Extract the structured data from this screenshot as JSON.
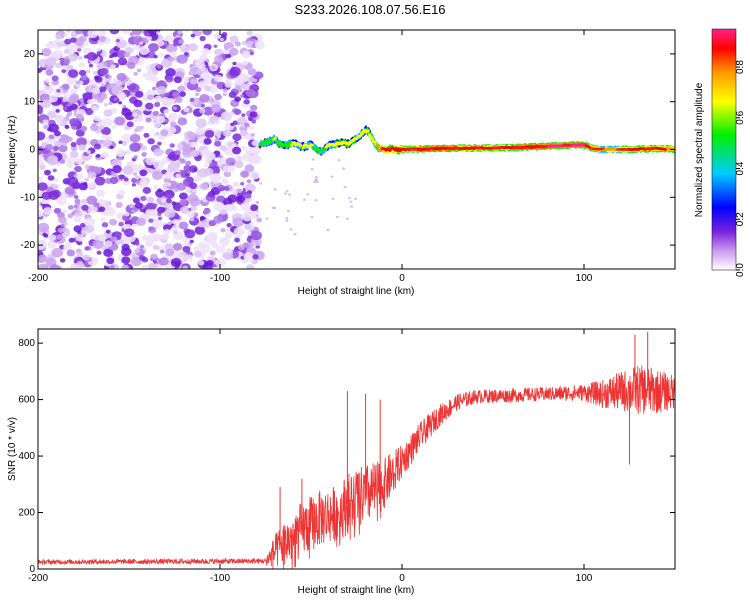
{
  "title": "S233.2026.108.07.56.E16",
  "colors": {
    "snr_line": "#ee3333",
    "noise": "#9966ee"
  },
  "chart_data": [
    {
      "type": "heatmap",
      "xlabel": "Height of straight line (km)",
      "ylabel": "Frequency (Hz)",
      "xlim": [
        -200,
        150
      ],
      "ylim": [
        -25,
        25
      ],
      "x_ticks": [
        -200,
        -100,
        0,
        100
      ],
      "x_tick_labels": [
        "-200",
        "-100",
        "0",
        "100"
      ],
      "y_ticks": [
        20,
        10,
        0,
        -10,
        -20
      ],
      "y_tick_labels": [
        "20",
        "10",
        "0",
        "-10",
        "-20"
      ],
      "colorbar": {
        "label": "Normalized spectral amplitude",
        "range": [
          0,
          0.95
        ],
        "ticks": [
          0.0,
          0.2,
          0.4,
          0.6,
          0.8
        ],
        "tick_labels": [
          "0.0",
          "0.2",
          "0.4",
          "0.6",
          "0.8"
        ],
        "stops": [
          "#ffffff",
          "#cc99ee",
          "#7722dd",
          "#0000ff",
          "#00ccff",
          "#00ee00",
          "#ffff00",
          "#ff9900",
          "#ff0000",
          "#ff2288"
        ]
      },
      "noise_region_x": [
        -200,
        -78
      ],
      "ridge": {
        "x": [
          -78,
          -75,
          -72,
          -70,
          -68,
          -65,
          -62,
          -60,
          -57,
          -55,
          -52,
          -50,
          -47,
          -45,
          -42,
          -40,
          -37,
          -35,
          -32,
          -30,
          -27,
          -25,
          -22,
          -20,
          -18,
          -16,
          -14,
          -12,
          -10,
          -5,
          0,
          20,
          40,
          60,
          80,
          90,
          100,
          105,
          110,
          120,
          130,
          140,
          150
        ],
        "freq": [
          1.0,
          1.5,
          1.8,
          2.3,
          1.2,
          0.9,
          1.0,
          1.3,
          1.0,
          0.5,
          0.8,
          0.9,
          0.2,
          -0.5,
          0.1,
          0.9,
          1.0,
          1.2,
          1.6,
          1.1,
          1.6,
          2.5,
          3.3,
          4.0,
          3.5,
          2.0,
          0.8,
          0.2,
          0.0,
          0.0,
          0.0,
          0.2,
          0.3,
          0.4,
          0.7,
          0.9,
          1.0,
          0.2,
          0.0,
          0.0,
          0.1,
          0.2,
          0.1
        ],
        "amplitude": [
          0.45,
          0.5,
          0.5,
          0.6,
          0.5,
          0.45,
          0.5,
          0.6,
          0.6,
          0.55,
          0.6,
          0.6,
          0.5,
          0.5,
          0.55,
          0.6,
          0.6,
          0.65,
          0.65,
          0.6,
          0.65,
          0.6,
          0.6,
          0.6,
          0.65,
          0.7,
          0.7,
          0.8,
          0.85,
          0.85,
          0.88,
          0.92,
          0.88,
          0.9,
          0.92,
          0.95,
          0.95,
          0.8,
          0.75,
          0.8,
          0.85,
          0.85,
          0.8
        ]
      }
    },
    {
      "type": "line",
      "xlabel": "Height of straight line (km)",
      "ylabel": "SNR (10 * v/v)",
      "xlim": [
        -200,
        150
      ],
      "ylim": [
        0,
        850
      ],
      "x_ticks": [
        -200,
        -100,
        0,
        100
      ],
      "x_tick_labels": [
        "-200",
        "-100",
        "0",
        "100"
      ],
      "y_ticks": [
        0,
        200,
        400,
        600,
        800
      ],
      "y_tick_labels": [
        "0",
        "200",
        "400",
        "600",
        "800"
      ],
      "envelope": {
        "x": [
          -200,
          -75,
          -70,
          -65,
          -60,
          -55,
          -50,
          -45,
          -40,
          -35,
          -30,
          -25,
          -20,
          -15,
          -10,
          -5,
          0,
          10,
          20,
          30,
          40,
          60,
          80,
          100,
          110,
          120,
          130,
          140,
          150
        ],
        "mean": [
          25,
          28,
          60,
          90,
          110,
          140,
          160,
          180,
          190,
          200,
          230,
          250,
          260,
          280,
          300,
          340,
          380,
          470,
          540,
          590,
          610,
          615,
          620,
          625,
          620,
          630,
          635,
          630,
          625
        ],
        "spread": [
          8,
          10,
          60,
          80,
          90,
          100,
          100,
          100,
          100,
          100,
          110,
          110,
          110,
          100,
          90,
          80,
          60,
          50,
          40,
          30,
          25,
          25,
          25,
          30,
          50,
          70,
          90,
          80,
          60
        ]
      },
      "spikes": [
        {
          "x": -67,
          "y": 290
        },
        {
          "x": -55,
          "y": 320
        },
        {
          "x": -30,
          "y": 630
        },
        {
          "x": -20,
          "y": 620
        },
        {
          "x": -12,
          "y": 600
        },
        {
          "x": 125,
          "y": 370
        },
        {
          "x": 128,
          "y": 830
        },
        {
          "x": 135,
          "y": 840
        }
      ]
    }
  ]
}
